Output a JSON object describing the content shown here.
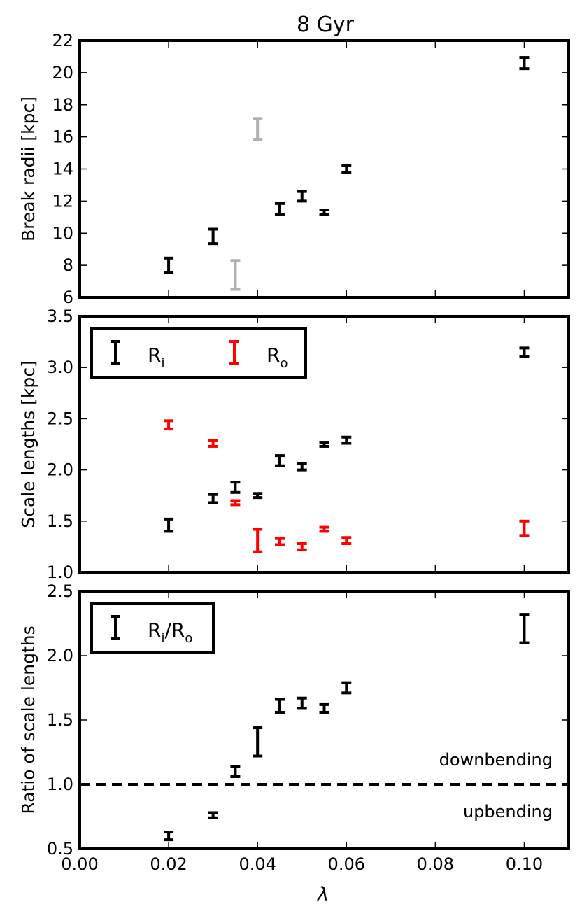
{
  "chart_data": [
    {
      "type": "errorbar",
      "title": "8 Gyr",
      "ylabel": "Break radii [kpc]",
      "ylim": [
        6,
        22
      ],
      "yticks": [
        6,
        8,
        10,
        12,
        14,
        16,
        18,
        20,
        22
      ],
      "ytick_labels": [
        "6",
        "8",
        "10",
        "12",
        "14",
        "16",
        "18",
        "20",
        "22"
      ],
      "series": [
        {
          "name": "break radius",
          "color": "#000000",
          "points": [
            {
              "x": 0.02,
              "y": 8.0,
              "err": 0.45
            },
            {
              "x": 0.03,
              "y": 9.8,
              "err": 0.45
            },
            {
              "x": 0.045,
              "y": 11.5,
              "err": 0.35
            },
            {
              "x": 0.05,
              "y": 12.3,
              "err": 0.3
            },
            {
              "x": 0.055,
              "y": 11.3,
              "err": 0.15
            },
            {
              "x": 0.06,
              "y": 14.0,
              "err": 0.2
            },
            {
              "x": 0.1,
              "y": 20.6,
              "err": 0.35
            }
          ]
        },
        {
          "name": "break radius (grey)",
          "color": "#b0b0b0",
          "points": [
            {
              "x": 0.035,
              "y": 7.4,
              "err": 0.9
            },
            {
              "x": 0.04,
              "y": 16.5,
              "err": 0.65
            }
          ]
        }
      ]
    },
    {
      "type": "errorbar",
      "ylabel": "Scale lengths [kpc]",
      "ylim": [
        1.0,
        3.5
      ],
      "yticks": [
        1.0,
        1.5,
        2.0,
        2.5,
        3.0,
        3.5
      ],
      "ytick_labels": [
        "1.0",
        "1.5",
        "2.0",
        "2.5",
        "3.0",
        "3.5"
      ],
      "legend": {
        "placement": "top-left",
        "entries": [
          {
            "label": "R",
            "sub": "i",
            "color": "#000000"
          },
          {
            "label": "R",
            "sub": "o",
            "color": "#ff0000"
          }
        ]
      },
      "series": [
        {
          "name": "R_i",
          "color": "#000000",
          "points": [
            {
              "x": 0.02,
              "y": 1.46,
              "err": 0.06
            },
            {
              "x": 0.03,
              "y": 1.72,
              "err": 0.04
            },
            {
              "x": 0.035,
              "y": 1.83,
              "err": 0.05
            },
            {
              "x": 0.04,
              "y": 1.75,
              "err": 0.02
            },
            {
              "x": 0.045,
              "y": 2.09,
              "err": 0.05
            },
            {
              "x": 0.05,
              "y": 2.03,
              "err": 0.03
            },
            {
              "x": 0.055,
              "y": 2.25,
              "err": 0.02
            },
            {
              "x": 0.06,
              "y": 2.29,
              "err": 0.03
            },
            {
              "x": 0.1,
              "y": 3.15,
              "err": 0.04
            }
          ]
        },
        {
          "name": "R_o",
          "color": "#ff0000",
          "points": [
            {
              "x": 0.02,
              "y": 2.44,
              "err": 0.04
            },
            {
              "x": 0.03,
              "y": 2.26,
              "err": 0.03
            },
            {
              "x": 0.035,
              "y": 1.68,
              "err": 0.02
            },
            {
              "x": 0.04,
              "y": 1.31,
              "err": 0.11
            },
            {
              "x": 0.045,
              "y": 1.3,
              "err": 0.03
            },
            {
              "x": 0.05,
              "y": 1.25,
              "err": 0.03
            },
            {
              "x": 0.055,
              "y": 1.42,
              "err": 0.02
            },
            {
              "x": 0.06,
              "y": 1.31,
              "err": 0.03
            },
            {
              "x": 0.1,
              "y": 1.43,
              "err": 0.07
            }
          ]
        }
      ]
    },
    {
      "type": "errorbar",
      "ylabel": "Ratio of scale lengths",
      "xlabel": "λ",
      "ylim": [
        0.5,
        2.5
      ],
      "yticks": [
        0.5,
        1.0,
        1.5,
        2.0,
        2.5
      ],
      "ytick_labels": [
        "0.5",
        "1.0",
        "1.5",
        "2.0",
        "2.5"
      ],
      "xlim": [
        0.0,
        0.11
      ],
      "xticks": [
        0.0,
        0.02,
        0.04,
        0.06,
        0.08,
        0.1
      ],
      "xtick_labels": [
        "0.00",
        "0.02",
        "0.04",
        "0.06",
        "0.08",
        "0.10"
      ],
      "legend": {
        "placement": "top-left",
        "entries": [
          {
            "label": "R",
            "sub": "i",
            "label2": "/R",
            "sub2": "o",
            "color": "#000000"
          }
        ]
      },
      "reference_line": {
        "y": 1.0,
        "style": "dashed",
        "color": "#000000"
      },
      "annotations": [
        "downbending",
        "upbending"
      ],
      "series": [
        {
          "name": "R_i/R_o",
          "color": "#000000",
          "points": [
            {
              "x": 0.02,
              "y": 0.6,
              "err": 0.03
            },
            {
              "x": 0.03,
              "y": 0.76,
              "err": 0.02
            },
            {
              "x": 0.035,
              "y": 1.1,
              "err": 0.04
            },
            {
              "x": 0.04,
              "y": 1.33,
              "err": 0.11
            },
            {
              "x": 0.045,
              "y": 1.61,
              "err": 0.05
            },
            {
              "x": 0.05,
              "y": 1.63,
              "err": 0.04
            },
            {
              "x": 0.055,
              "y": 1.59,
              "err": 0.03
            },
            {
              "x": 0.06,
              "y": 1.75,
              "err": 0.04
            },
            {
              "x": 0.1,
              "y": 2.21,
              "err": 0.11
            }
          ]
        }
      ]
    }
  ]
}
